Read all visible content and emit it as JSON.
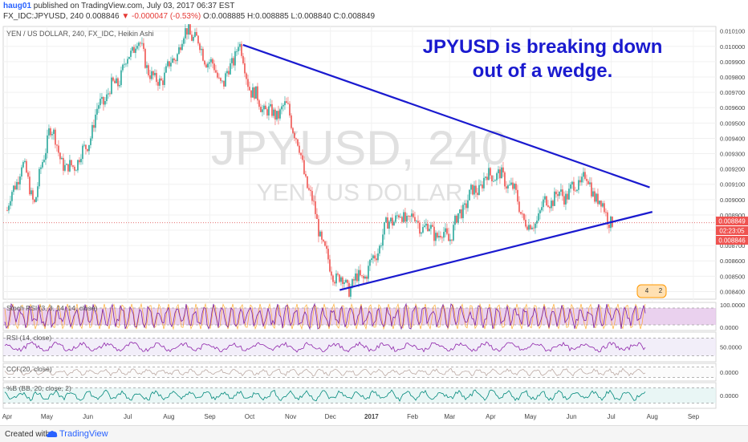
{
  "header": {
    "user": "haug01",
    "published_text": "published on TradingView.com, July 03, 2017 06:37 EST",
    "symbol": "FX_IDC:JPYUSD, 240",
    "last_price": "0.008846",
    "change": "▼ -0.000047 (-0.53%)",
    "ohlc": "O:0.008885 H:0.008885 L:0.008840 C:0.008849"
  },
  "footer": {
    "created_with": "Created with",
    "brand": "TradingView"
  },
  "annotation": {
    "line1": "JPYUSD is breaking down",
    "line2": "out of a wedge."
  },
  "watermark": {
    "symbol": "JPYUSD, 240",
    "name": "YEN / US DOLLAR"
  },
  "legend": "YEN / US DOLLAR, 240, FX_IDC, Heikin Ashi",
  "price_labels": {
    "current": "0.008849",
    "countdown": "02:23:05",
    "close": "0.008846"
  },
  "indicator_values": {
    "stoch_top": "100.0000",
    "stoch_bottom": "0.0000",
    "rsi": "50.0000",
    "cci": "0.0000",
    "bb": "0.0000"
  },
  "event_badge": {
    "count_a": "4",
    "count_b": "2"
  },
  "colors": {
    "trendline": "#1a1acf",
    "annotation": "#1a1acf",
    "up": "#26a69a",
    "down": "#ef5350",
    "stoch_bg": "#e1bee7",
    "rsi_bg": "#ede7f6",
    "bb_bg": "#e0f2f1"
  },
  "chart_data": [
    {
      "type": "candlestick",
      "title": "YEN / US DOLLAR, 240, FX_IDC, Heikin Ashi",
      "x_ticks": [
        "Apr",
        "May",
        "Jun",
        "Jul",
        "Aug",
        "Sep",
        "Oct",
        "Nov",
        "Dec",
        "2017",
        "Feb",
        "Mar",
        "Apr",
        "May",
        "Jun",
        "Jul",
        "Aug",
        "Sep"
      ],
      "y_ticks": [
        "0.010100",
        "0.010000",
        "0.009900",
        "0.009800",
        "0.009700",
        "0.009600",
        "0.009500",
        "0.009400",
        "0.009300",
        "0.009200",
        "0.009100",
        "0.009000",
        "0.008900",
        "0.008800",
        "0.008700",
        "0.008600",
        "0.008500",
        "0.008400"
      ],
      "ylim": [
        0.00835,
        0.01013
      ],
      "path_dates": [
        "2016-04-01",
        "2016-04-12",
        "2016-04-22",
        "2016-05-03",
        "2016-05-16",
        "2016-05-30",
        "2016-06-10",
        "2016-06-24",
        "2016-07-08",
        "2016-07-22",
        "2016-08-01",
        "2016-08-16",
        "2016-08-30",
        "2016-09-12",
        "2016-09-23",
        "2016-10-03",
        "2016-10-17",
        "2016-10-31",
        "2016-11-09",
        "2016-11-21",
        "2016-12-01",
        "2016-12-15",
        "2016-12-30",
        "2017-01-16",
        "2017-02-01",
        "2017-02-15",
        "2017-03-01",
        "2017-03-15",
        "2017-04-03",
        "2017-04-17",
        "2017-05-01",
        "2017-05-15",
        "2017-06-01",
        "2017-06-12",
        "2017-06-27",
        "2017-07-03"
      ],
      "path_close": [
        0.00893,
        0.00924,
        0.00898,
        0.00948,
        0.00918,
        0.00932,
        0.00962,
        0.00978,
        0.01005,
        0.00975,
        0.00985,
        0.01012,
        0.00992,
        0.00975,
        0.01002,
        0.0097,
        0.00955,
        0.0096,
        0.00928,
        0.00887,
        0.00855,
        0.00843,
        0.00853,
        0.00888,
        0.00888,
        0.0088,
        0.00875,
        0.009,
        0.00918,
        0.0091,
        0.0088,
        0.009,
        0.00905,
        0.00915,
        0.00893,
        0.00885
      ],
      "trendlines": [
        {
          "from": {
            "x": "2016-09-26",
            "y": 0.01001
          },
          "to": {
            "x": "2017-07-30",
            "y": 0.00908
          }
        },
        {
          "from": {
            "x": "2016-12-08",
            "y": 0.00841
          },
          "to": {
            "x": "2017-08-01",
            "y": 0.00892
          }
        }
      ],
      "current_price": 0.008849
    },
    {
      "type": "line",
      "title": "Stoch RSI (3, 3, 14, 14, close)",
      "ylim": [
        0,
        100
      ],
      "levels": [
        80,
        20
      ]
    },
    {
      "type": "line",
      "title": "RSI (14, close)",
      "ylim": [
        20,
        80
      ],
      "levels": [
        70,
        30
      ]
    },
    {
      "type": "line",
      "title": "CCI (20, close)",
      "ylim": [
        -300,
        300
      ],
      "levels": [
        100,
        -100
      ]
    },
    {
      "type": "line",
      "title": "%B (BB, 20, close, 2)",
      "ylim": [
        -0.5,
        1.5
      ],
      "levels": [
        1,
        0
      ]
    }
  ]
}
